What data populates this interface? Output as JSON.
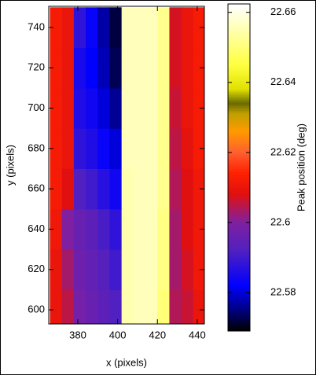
{
  "chart_data": {
    "type": "heatmap",
    "xlabel": "x (pixels)",
    "ylabel": "y (pixels)",
    "colorbar_label": "Peak position (deg)",
    "xlim": [
      365.4,
      443.6
    ],
    "ylim": [
      593,
      750.5
    ],
    "xticks": [
      380,
      400,
      420,
      440
    ],
    "yticks": [
      600,
      620,
      640,
      660,
      680,
      700,
      720,
      740
    ],
    "clim": [
      22.569,
      22.6624
    ],
    "cticks": [
      22.58,
      22.6,
      22.62,
      22.64,
      22.66
    ],
    "colormap": [
      [
        22.569,
        "#000000"
      ],
      [
        22.575,
        "#000080"
      ],
      [
        22.582,
        "#0000ff"
      ],
      [
        22.592,
        "#5020c0"
      ],
      [
        22.6,
        "#8020a0"
      ],
      [
        22.608,
        "#e01010"
      ],
      [
        22.614,
        "#ff2000"
      ],
      [
        22.62,
        "#ff6030"
      ],
      [
        22.626,
        "#ff9a00"
      ],
      [
        22.631,
        "#c0a000"
      ],
      [
        22.634,
        "#6a6a00"
      ],
      [
        22.638,
        "#e0e000"
      ],
      [
        22.645,
        "#ffff40"
      ],
      [
        22.655,
        "#ffffb0"
      ],
      [
        22.662,
        "#ffffff"
      ]
    ],
    "x_bins": [
      366,
      372,
      378,
      384,
      390,
      396,
      402,
      408,
      414,
      420,
      426,
      432,
      438,
      444
    ],
    "y_bins": [
      590,
      610,
      630,
      650,
      670,
      690,
      710,
      730,
      750
    ],
    "values": [
      [
        22.61,
        22.605,
        22.598,
        22.596,
        22.594,
        22.592,
        22.655,
        22.656,
        22.656,
        22.65,
        22.604,
        22.606,
        22.61
      ],
      [
        22.61,
        22.603,
        22.597,
        22.595,
        22.593,
        22.59,
        22.655,
        22.656,
        22.656,
        22.651,
        22.603,
        22.607,
        22.611
      ],
      [
        22.611,
        22.6,
        22.596,
        22.594,
        22.591,
        22.588,
        22.655,
        22.656,
        22.656,
        22.651,
        22.603,
        22.608,
        22.611
      ],
      [
        22.612,
        22.608,
        22.592,
        22.59,
        22.587,
        22.584,
        22.655,
        22.656,
        22.656,
        22.652,
        22.604,
        22.608,
        22.611
      ],
      [
        22.612,
        22.61,
        22.588,
        22.586,
        22.583,
        22.58,
        22.656,
        22.656,
        22.656,
        22.652,
        22.605,
        22.609,
        22.612
      ],
      [
        22.612,
        22.61,
        22.586,
        22.584,
        22.58,
        22.576,
        22.656,
        22.656,
        22.656,
        22.652,
        22.606,
        22.61,
        22.612
      ],
      [
        22.612,
        22.61,
        22.585,
        22.582,
        22.578,
        22.573,
        22.656,
        22.656,
        22.656,
        22.652,
        22.607,
        22.61,
        22.612
      ],
      [
        22.612,
        22.61,
        22.588,
        22.583,
        22.577,
        22.572,
        22.656,
        22.656,
        22.656,
        22.652,
        22.607,
        22.61,
        22.612
      ]
    ]
  }
}
